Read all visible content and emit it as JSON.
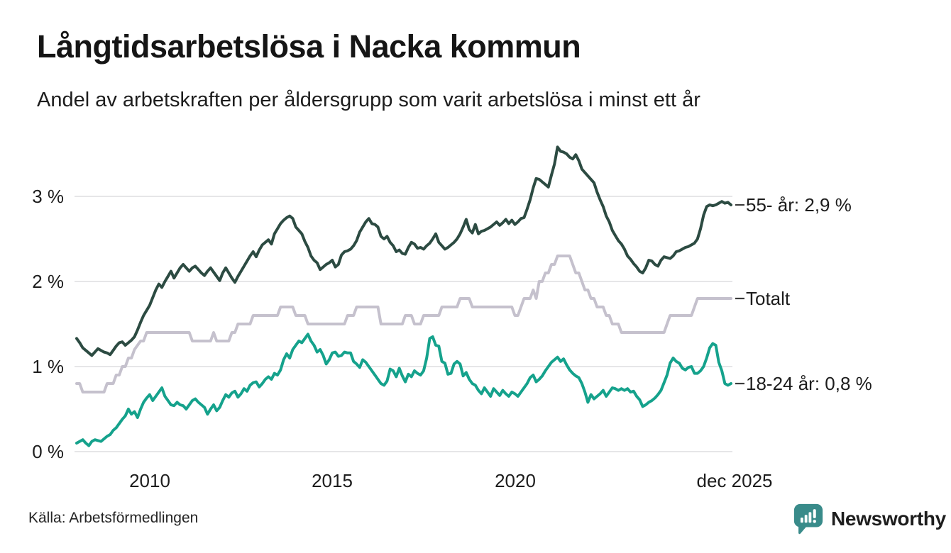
{
  "title": "Långtidsarbetslösa i Nacka kommun",
  "subtitle": "Andel av arbetskraften per åldersgrupp som varit arbetslösa i minst ett år",
  "source": "Källa: Arbetsförmedlingen",
  "brand": {
    "name": "Newsworthy",
    "color": "#398b8a"
  },
  "chart_data": {
    "type": "line",
    "x_unit": "month",
    "x_start": "jan 2008",
    "x_end": "dec 2025",
    "xticklabels": [
      "2010",
      "2015",
      "2020",
      "dec 2025"
    ],
    "yticklabels": [
      "0 %",
      "1 %",
      "2 %",
      "3 %"
    ],
    "yticks": [
      0,
      1,
      2,
      3
    ],
    "ylim": [
      0,
      3.75
    ],
    "grid": true,
    "legend_position": "end-of-line labels at right",
    "grid_color": "#e3e2e5",
    "tick_dash_color": "#3c3c3c",
    "series": [
      {
        "name": "55- år",
        "end_label": "55- år: 2,9 %",
        "last_value_display": "2,9 %",
        "color": "#2c4b42",
        "values": [
          1.33,
          1.28,
          1.22,
          1.19,
          1.16,
          1.13,
          1.17,
          1.21,
          1.19,
          1.17,
          1.16,
          1.14,
          1.19,
          1.24,
          1.28,
          1.29,
          1.25,
          1.28,
          1.31,
          1.35,
          1.43,
          1.52,
          1.6,
          1.66,
          1.72,
          1.81,
          1.9,
          1.97,
          1.93,
          2.0,
          2.06,
          2.12,
          2.04,
          2.1,
          2.16,
          2.2,
          2.16,
          2.12,
          2.16,
          2.18,
          2.14,
          2.1,
          2.07,
          2.12,
          2.16,
          2.11,
          2.06,
          2.01,
          2.1,
          2.16,
          2.1,
          2.04,
          1.99,
          2.06,
          2.12,
          2.18,
          2.24,
          2.3,
          2.35,
          2.29,
          2.37,
          2.43,
          2.46,
          2.49,
          2.44,
          2.56,
          2.62,
          2.68,
          2.72,
          2.75,
          2.77,
          2.74,
          2.64,
          2.6,
          2.56,
          2.47,
          2.4,
          2.3,
          2.25,
          2.22,
          2.14,
          2.17,
          2.2,
          2.22,
          2.25,
          2.17,
          2.2,
          2.31,
          2.35,
          2.36,
          2.38,
          2.42,
          2.48,
          2.58,
          2.64,
          2.7,
          2.74,
          2.68,
          2.67,
          2.64,
          2.53,
          2.5,
          2.53,
          2.46,
          2.42,
          2.35,
          2.37,
          2.33,
          2.32,
          2.4,
          2.46,
          2.44,
          2.39,
          2.4,
          2.38,
          2.42,
          2.45,
          2.5,
          2.56,
          2.46,
          2.42,
          2.38,
          2.4,
          2.43,
          2.46,
          2.5,
          2.56,
          2.64,
          2.73,
          2.61,
          2.57,
          2.67,
          2.56,
          2.59,
          2.6,
          2.62,
          2.64,
          2.67,
          2.7,
          2.66,
          2.69,
          2.73,
          2.68,
          2.72,
          2.67,
          2.7,
          2.74,
          2.75,
          2.85,
          2.96,
          3.1,
          3.21,
          3.2,
          3.17,
          3.14,
          3.11,
          3.25,
          3.38,
          3.58,
          3.53,
          3.52,
          3.5,
          3.46,
          3.44,
          3.49,
          3.42,
          3.32,
          3.28,
          3.24,
          3.2,
          3.16,
          3.05,
          2.96,
          2.88,
          2.77,
          2.7,
          2.6,
          2.54,
          2.48,
          2.44,
          2.38,
          2.3,
          2.26,
          2.21,
          2.17,
          2.12,
          2.1,
          2.16,
          2.25,
          2.24,
          2.2,
          2.18,
          2.25,
          2.29,
          2.28,
          2.27,
          2.3,
          2.35,
          2.36,
          2.38,
          2.4,
          2.41,
          2.43,
          2.45,
          2.5,
          2.62,
          2.78,
          2.88,
          2.9,
          2.89,
          2.9,
          2.92,
          2.94,
          2.92,
          2.93,
          2.9
        ]
      },
      {
        "name": "Totalt",
        "end_label": "Totalt",
        "last_value_display": "1,8 %",
        "color": "#c5c1cd",
        "values": [
          0.8,
          0.8,
          0.7,
          0.7,
          0.7,
          0.7,
          0.7,
          0.7,
          0.7,
          0.7,
          0.8,
          0.8,
          0.8,
          0.9,
          0.9,
          1.0,
          1.0,
          1.1,
          1.1,
          1.2,
          1.25,
          1.3,
          1.3,
          1.4,
          1.4,
          1.4,
          1.4,
          1.4,
          1.4,
          1.4,
          1.4,
          1.4,
          1.4,
          1.4,
          1.4,
          1.4,
          1.4,
          1.4,
          1.3,
          1.3,
          1.3,
          1.3,
          1.3,
          1.3,
          1.3,
          1.4,
          1.3,
          1.3,
          1.3,
          1.3,
          1.3,
          1.4,
          1.4,
          1.5,
          1.5,
          1.5,
          1.5,
          1.5,
          1.6,
          1.6,
          1.6,
          1.6,
          1.6,
          1.6,
          1.6,
          1.6,
          1.6,
          1.7,
          1.7,
          1.7,
          1.7,
          1.7,
          1.6,
          1.6,
          1.6,
          1.6,
          1.5,
          1.5,
          1.5,
          1.5,
          1.5,
          1.5,
          1.5,
          1.5,
          1.5,
          1.5,
          1.5,
          1.5,
          1.5,
          1.6,
          1.6,
          1.6,
          1.7,
          1.7,
          1.7,
          1.7,
          1.7,
          1.7,
          1.7,
          1.7,
          1.5,
          1.5,
          1.5,
          1.5,
          1.5,
          1.5,
          1.5,
          1.5,
          1.6,
          1.6,
          1.6,
          1.5,
          1.5,
          1.5,
          1.6,
          1.6,
          1.6,
          1.6,
          1.6,
          1.6,
          1.7,
          1.7,
          1.7,
          1.7,
          1.7,
          1.7,
          1.8,
          1.8,
          1.8,
          1.8,
          1.7,
          1.7,
          1.7,
          1.7,
          1.7,
          1.7,
          1.7,
          1.7,
          1.7,
          1.7,
          1.7,
          1.7,
          1.7,
          1.7,
          1.6,
          1.6,
          1.7,
          1.8,
          1.8,
          1.8,
          1.9,
          1.8,
          2.0,
          2.0,
          2.1,
          2.1,
          2.2,
          2.2,
          2.3,
          2.3,
          2.3,
          2.3,
          2.3,
          2.2,
          2.1,
          2.1,
          2.0,
          1.9,
          1.9,
          1.8,
          1.8,
          1.7,
          1.7,
          1.7,
          1.6,
          1.6,
          1.5,
          1.5,
          1.5,
          1.4,
          1.4,
          1.4,
          1.4,
          1.4,
          1.4,
          1.4,
          1.4,
          1.4,
          1.4,
          1.4,
          1.4,
          1.4,
          1.4,
          1.4,
          1.5,
          1.6,
          1.6,
          1.6,
          1.6,
          1.6,
          1.6,
          1.6,
          1.6,
          1.7,
          1.8,
          1.8,
          1.8,
          1.8,
          1.8,
          1.8,
          1.8,
          1.8,
          1.8,
          1.8,
          1.8,
          1.8
        ]
      },
      {
        "name": "18-24 år",
        "end_label": "18-24 år: 0,8 %",
        "last_value_display": "0,8 %",
        "color": "#15a28c",
        "values": [
          0.1,
          0.12,
          0.14,
          0.1,
          0.07,
          0.12,
          0.14,
          0.13,
          0.12,
          0.15,
          0.18,
          0.2,
          0.25,
          0.28,
          0.33,
          0.38,
          0.42,
          0.5,
          0.44,
          0.47,
          0.4,
          0.5,
          0.58,
          0.63,
          0.67,
          0.6,
          0.65,
          0.7,
          0.75,
          0.65,
          0.6,
          0.55,
          0.54,
          0.58,
          0.55,
          0.54,
          0.5,
          0.55,
          0.6,
          0.62,
          0.58,
          0.55,
          0.52,
          0.44,
          0.5,
          0.55,
          0.48,
          0.52,
          0.6,
          0.67,
          0.64,
          0.69,
          0.71,
          0.64,
          0.68,
          0.74,
          0.71,
          0.78,
          0.81,
          0.82,
          0.76,
          0.8,
          0.85,
          0.88,
          0.85,
          0.92,
          0.9,
          0.96,
          1.08,
          1.15,
          1.1,
          1.2,
          1.25,
          1.3,
          1.28,
          1.33,
          1.38,
          1.3,
          1.25,
          1.17,
          1.2,
          1.13,
          1.03,
          1.08,
          1.16,
          1.17,
          1.12,
          1.13,
          1.17,
          1.16,
          1.16,
          1.06,
          1.03,
          0.99,
          1.08,
          1.05,
          1.0,
          0.95,
          0.9,
          0.85,
          0.8,
          0.78,
          0.83,
          0.97,
          0.95,
          0.88,
          0.98,
          0.89,
          0.82,
          0.91,
          0.88,
          0.95,
          0.92,
          0.9,
          0.95,
          1.1,
          1.33,
          1.35,
          1.25,
          1.24,
          1.06,
          1.04,
          0.91,
          0.92,
          1.03,
          1.06,
          1.03,
          0.89,
          0.93,
          0.85,
          0.8,
          0.78,
          0.72,
          0.68,
          0.75,
          0.7,
          0.65,
          0.74,
          0.7,
          0.66,
          0.72,
          0.68,
          0.65,
          0.7,
          0.68,
          0.65,
          0.7,
          0.75,
          0.8,
          0.87,
          0.9,
          0.82,
          0.85,
          0.89,
          0.95,
          1.0,
          1.05,
          1.08,
          1.11,
          1.06,
          1.09,
          1.02,
          0.96,
          0.92,
          0.89,
          0.87,
          0.8,
          0.7,
          0.58,
          0.67,
          0.62,
          0.65,
          0.68,
          0.72,
          0.65,
          0.7,
          0.75,
          0.74,
          0.72,
          0.74,
          0.72,
          0.74,
          0.7,
          0.71,
          0.65,
          0.61,
          0.53,
          0.55,
          0.58,
          0.6,
          0.63,
          0.67,
          0.72,
          0.81,
          0.9,
          1.04,
          1.1,
          1.06,
          1.04,
          0.98,
          0.96,
          0.99,
          1.0,
          0.92,
          0.92,
          0.95,
          1.0,
          1.1,
          1.22,
          1.27,
          1.25,
          1.05,
          0.95,
          0.8,
          0.78,
          0.8
        ]
      }
    ]
  }
}
